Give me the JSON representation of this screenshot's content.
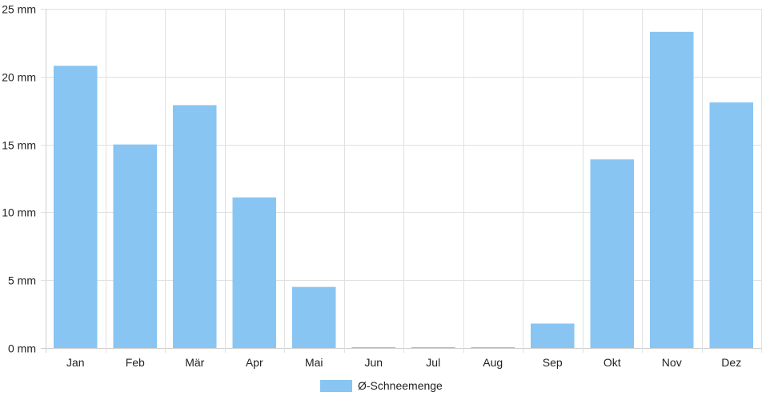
{
  "chart_data": {
    "type": "bar",
    "categories": [
      "Jan",
      "Feb",
      "Mär",
      "Apr",
      "Mai",
      "Jun",
      "Jul",
      "Aug",
      "Sep",
      "Okt",
      "Nov",
      "Dez"
    ],
    "series": [
      {
        "name": "Ø-Schneemenge",
        "color": "#88c5f2",
        "values": [
          20.8,
          15.0,
          17.9,
          11.1,
          4.5,
          0.05,
          0.05,
          0.05,
          1.8,
          13.9,
          23.3,
          18.1
        ]
      }
    ],
    "yticks": [
      "0 mm",
      "5 mm",
      "10 mm",
      "15 mm",
      "20 mm",
      "25 mm"
    ],
    "ylim": [
      0,
      25
    ],
    "grid": true,
    "legend_position": "bottom-center"
  }
}
